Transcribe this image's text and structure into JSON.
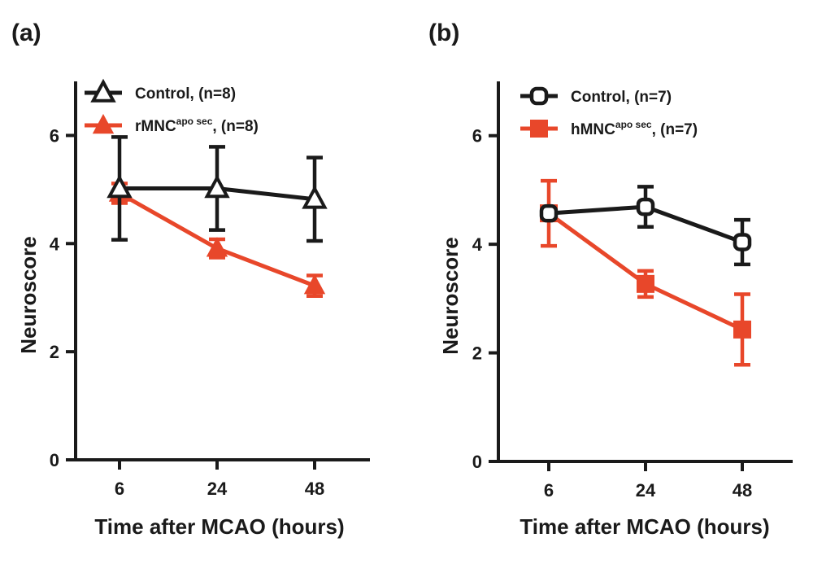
{
  "colors": {
    "control": "#1a1a1a",
    "treated": "#e8472a",
    "axis": "#1a1a1a"
  },
  "chart_data": [
    {
      "type": "line",
      "panel_label": "(a)",
      "xlabel": "Time after MCAO (hours)",
      "ylabel": "Neuroscore",
      "categories": [
        "6",
        "24",
        "48"
      ],
      "ylim": [
        0,
        7
      ],
      "yticks": [
        "0",
        "2",
        "4",
        "6"
      ],
      "grid": false,
      "legend_position": "top-left",
      "series": [
        {
          "name": "Control",
          "legend_main": "Control",
          "legend_sup": "",
          "legend_tail": ", (n=8)",
          "color_key": "control",
          "marker": "triangle-open",
          "values": [
            5.02,
            5.02,
            4.82
          ],
          "err": [
            0.95,
            0.77,
            0.77
          ]
        },
        {
          "name": "rMNCapo sec",
          "legend_main": "rMNC",
          "legend_sup": "apo sec",
          "legend_tail": ", (n=8)",
          "color_key": "treated",
          "marker": "triangle-filled",
          "values": [
            4.93,
            3.91,
            3.22
          ],
          "err": [
            0.18,
            0.17,
            0.19
          ]
        }
      ]
    },
    {
      "type": "line",
      "panel_label": "(b)",
      "xlabel": "Time after MCAO (hours)",
      "ylabel": "Neuroscore",
      "categories": [
        "6",
        "24",
        "48"
      ],
      "ylim": [
        0,
        7
      ],
      "yticks": [
        "0",
        "2",
        "4",
        "6"
      ],
      "grid": false,
      "legend_position": "top-left",
      "series": [
        {
          "name": "Control",
          "legend_main": "Control",
          "legend_sup": "",
          "legend_tail": ", (n=7)",
          "color_key": "control",
          "marker": "square-open",
          "values": [
            4.57,
            4.69,
            4.04
          ],
          "err": [
            0.0,
            0.37,
            0.41
          ]
        },
        {
          "name": "hMNCapo sec",
          "legend_main": "hMNC",
          "legend_sup": "apo sec",
          "legend_tail": ", (n=7)",
          "color_key": "treated",
          "marker": "square-filled",
          "values": [
            4.57,
            3.27,
            2.43
          ],
          "err": [
            0.6,
            0.24,
            0.65
          ]
        }
      ]
    }
  ]
}
